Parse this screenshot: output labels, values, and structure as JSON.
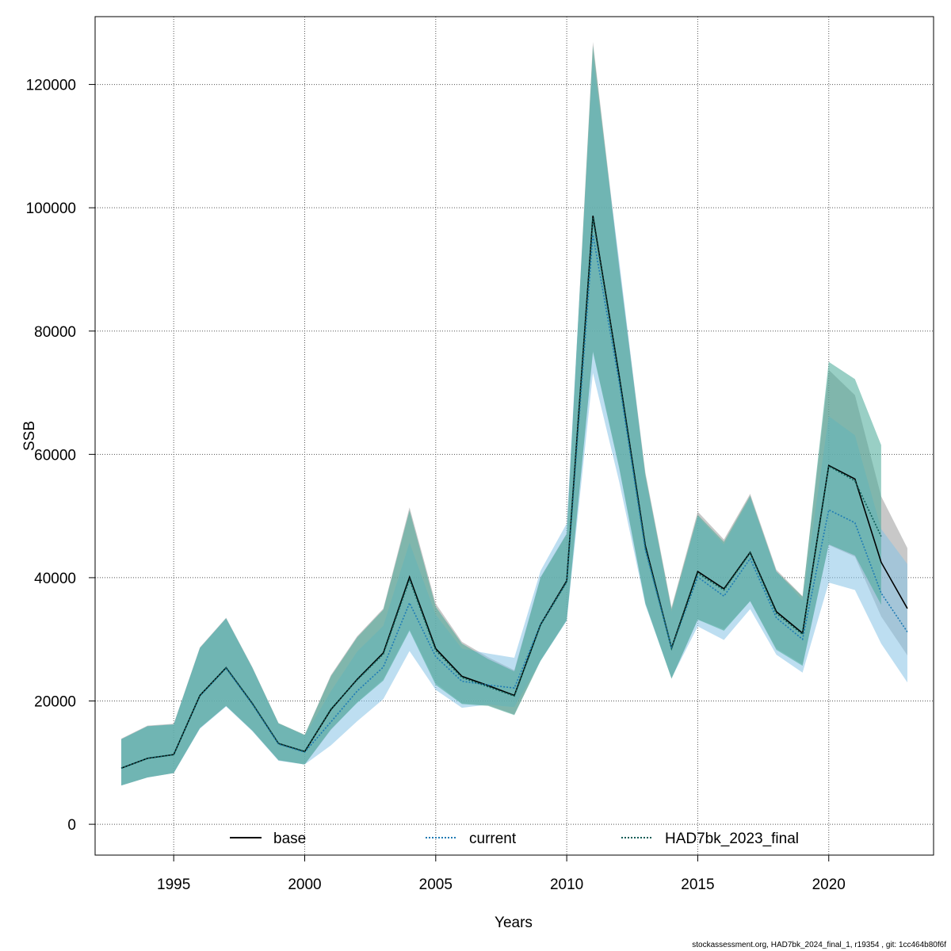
{
  "footer_text": "stockassessment.org, HAD7bk_2024_final_1, r19354 , git: 1cc464b80f6f",
  "chart_data": {
    "type": "line",
    "title": "",
    "xlabel": "Years",
    "ylabel": "SSB",
    "xlim": [
      1992.0,
      2024.0
    ],
    "ylim": [
      -5000,
      131000
    ],
    "xticks": [
      1995,
      2000,
      2005,
      2010,
      2015,
      2020
    ],
    "yticks": [
      0,
      20000,
      40000,
      60000,
      80000,
      100000,
      120000
    ],
    "grid": true,
    "legend_position": "bottom",
    "series": [
      {
        "name": "base",
        "line_color": "#000000",
        "line_style": "solid",
        "band_color": "#9a9a9a",
        "x": [
          1993,
          1994,
          1995,
          1996,
          1997,
          1998,
          1999,
          2000,
          2001,
          2002,
          2003,
          2004,
          2005,
          2006,
          2007,
          2008,
          2009,
          2010,
          2011,
          2012,
          2013,
          2014,
          2015,
          2016,
          2017,
          2018,
          2019,
          2020,
          2021,
          2022,
          2023
        ],
        "y": [
          9100,
          10700,
          11300,
          20900,
          25400,
          19600,
          13100,
          11800,
          18600,
          23500,
          27800,
          40100,
          28500,
          24000,
          22500,
          20900,
          32400,
          39500,
          98700,
          72800,
          45200,
          28600,
          41000,
          38200,
          44100,
          34500,
          31000,
          58200,
          56000,
          42500,
          35000
        ],
        "lower": [
          6300,
          7600,
          8300,
          15600,
          19200,
          15200,
          10400,
          9700,
          15300,
          19800,
          23500,
          31600,
          22900,
          19600,
          19300,
          17800,
          26600,
          33200,
          76800,
          58000,
          36000,
          23700,
          33200,
          31600,
          36200,
          28500,
          25900,
          45300,
          43400,
          33700,
          27400
        ],
        "upper": [
          13900,
          16000,
          16300,
          28700,
          33500,
          25500,
          16400,
          14500,
          24200,
          30500,
          35000,
          51400,
          35800,
          29600,
          27100,
          25000,
          40100,
          47200,
          126900,
          90800,
          57100,
          35200,
          50700,
          46200,
          53600,
          41300,
          37000,
          73700,
          69600,
          53200,
          44800
        ]
      },
      {
        "name": "current",
        "line_color": "#1f7bb4",
        "line_style": "dotted",
        "band_color": "#87c3e6",
        "x": [
          1993,
          1994,
          1995,
          1996,
          1997,
          1998,
          1999,
          2000,
          2001,
          2002,
          2003,
          2004,
          2005,
          2006,
          2007,
          2008,
          2009,
          2010,
          2011,
          2012,
          2013,
          2014,
          2015,
          2016,
          2017,
          2018,
          2019,
          2020,
          2021,
          2022,
          2023
        ],
        "y": [
          9100,
          10700,
          11300,
          20800,
          25300,
          19500,
          13000,
          11700,
          16600,
          21600,
          25500,
          35900,
          27200,
          23200,
          22600,
          22100,
          32400,
          39300,
          95600,
          71700,
          44500,
          28600,
          40100,
          37000,
          43100,
          33500,
          30000,
          51000,
          48900,
          37500,
          31200
        ],
        "lower": [
          6300,
          7600,
          8300,
          15500,
          19100,
          15100,
          10300,
          9700,
          12800,
          16700,
          20300,
          28100,
          21800,
          18900,
          19400,
          19000,
          26500,
          33000,
          73200,
          55600,
          35600,
          23700,
          32100,
          29900,
          34900,
          27500,
          24600,
          39200,
          38000,
          29300,
          23000
        ],
        "upper": [
          13800,
          15900,
          16200,
          28600,
          33400,
          25400,
          16300,
          14400,
          21600,
          28000,
          32200,
          45700,
          34000,
          28500,
          27700,
          27000,
          41100,
          48800,
          124400,
          91500,
          56400,
          34500,
          49900,
          45400,
          53000,
          41000,
          36300,
          66200,
          63100,
          47900,
          42200
        ]
      },
      {
        "name": "HAD7bk_2023_final",
        "line_color": "#0f5c56",
        "line_style": "dotted",
        "band_color": "#45a896",
        "x": [
          1993,
          1994,
          1995,
          1996,
          1997,
          1998,
          1999,
          2000,
          2001,
          2002,
          2003,
          2004,
          2005,
          2006,
          2007,
          2008,
          2009,
          2010,
          2011,
          2012,
          2013,
          2014,
          2015,
          2016,
          2017,
          2018,
          2019,
          2020,
          2021,
          2022
        ],
        "y": [
          9100,
          10700,
          11300,
          20900,
          25400,
          19600,
          13100,
          11800,
          18700,
          23400,
          27600,
          39700,
          28200,
          23800,
          22300,
          20800,
          32300,
          39300,
          98300,
          72500,
          44900,
          28500,
          40700,
          38000,
          44000,
          34200,
          30800,
          58100,
          55700,
          46700
        ],
        "lower": [
          6300,
          7600,
          8300,
          15600,
          19200,
          15200,
          10400,
          9700,
          15400,
          19700,
          23300,
          31400,
          22600,
          19500,
          19200,
          17700,
          26500,
          33100,
          76600,
          57800,
          35800,
          23600,
          33200,
          31400,
          36200,
          28300,
          25700,
          45400,
          43600,
          35600
        ],
        "upper": [
          13800,
          15900,
          16200,
          28600,
          33400,
          25400,
          16400,
          14500,
          24000,
          30300,
          34800,
          50900,
          35300,
          29300,
          26800,
          24800,
          40000,
          47100,
          126300,
          90300,
          56700,
          34900,
          50200,
          45800,
          53300,
          41000,
          36900,
          75000,
          72200,
          61500
        ]
      }
    ]
  }
}
